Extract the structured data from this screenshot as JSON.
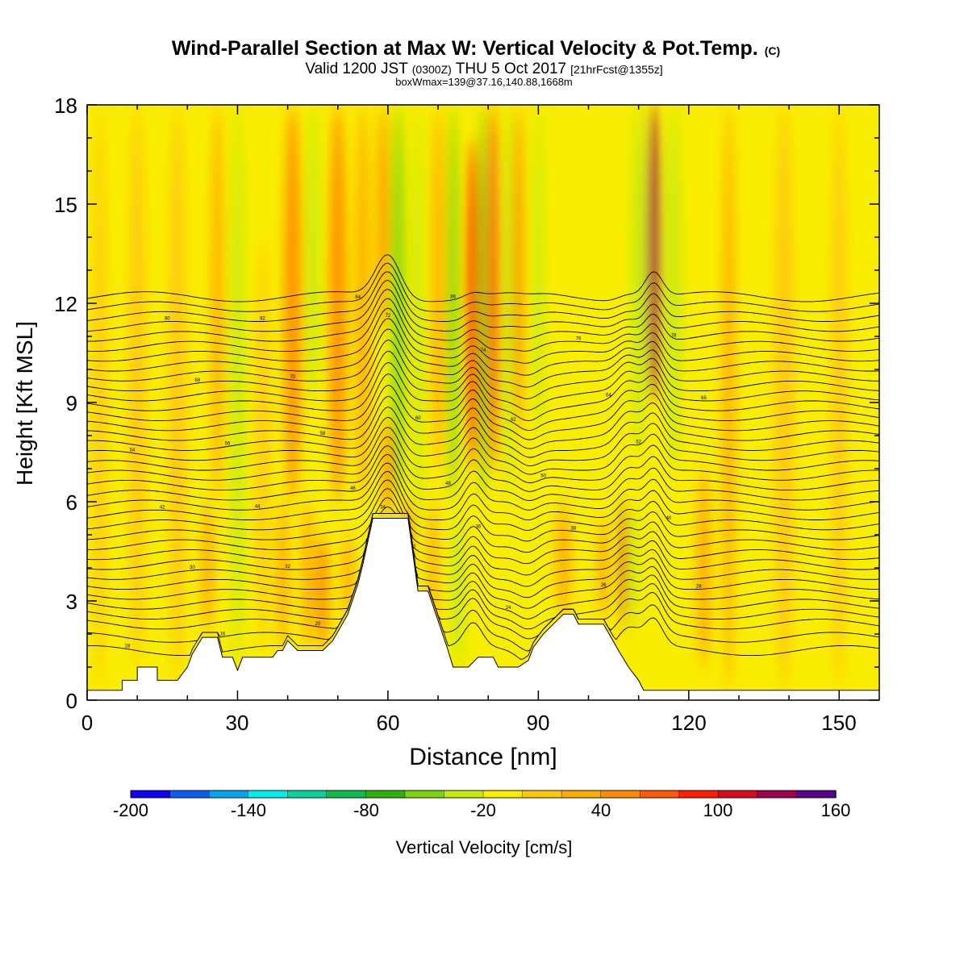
{
  "chart_data": {
    "type": "heatmap",
    "title_main": "Wind-Parallel Section at Max W: Vertical Velocity & Pot.Temp.",
    "title_mark": "(C)",
    "subtitle_a": "Valid 1200 JST",
    "subtitle_b": "(0300Z)",
    "subtitle_c": "THU 5 Oct 2017",
    "subtitle_d": "[21hrFcst@1355z]",
    "subtitle2": "boxWmax=139@37.16,140.88,1668m",
    "xlabel": "Distance [nm]",
    "ylabel": "Height [Kft MSL]",
    "xlim": [
      0,
      158
    ],
    "ylim": [
      0,
      18
    ],
    "x_ticks": [
      "0",
      "30",
      "60",
      "90",
      "120",
      "150"
    ],
    "y_ticks": [
      "0",
      "3",
      "6",
      "9",
      "12",
      "15",
      "18"
    ],
    "colorbar_label": "Vertical Velocity [cm/s]",
    "colorbar_ticks": [
      "-200",
      "-140",
      "-80",
      "-20",
      "40",
      "100",
      "160"
    ],
    "colorbar_colors": [
      "#0f00f4",
      "#0a5cf2",
      "#00a7ef",
      "#04eded",
      "#06d499",
      "#0cbb49",
      "#2fb10c",
      "#7bd40d",
      "#c5ea0d",
      "#f9ed00",
      "#ffc80a",
      "#ffad00",
      "#ff8c00",
      "#ff5a0a",
      "#ff1e00",
      "#d70a1e",
      "#a0004b",
      "#5a0087"
    ],
    "colorbar_range": [
      -200,
      160
    ],
    "colorbar_step": 20,
    "terrain": [
      [
        0,
        0.3
      ],
      [
        7,
        0.3
      ],
      [
        7,
        0.6
      ],
      [
        10,
        0.6
      ],
      [
        10,
        1.0
      ],
      [
        14,
        1.0
      ],
      [
        14,
        0.6
      ],
      [
        18,
        0.6
      ],
      [
        20,
        1.0
      ],
      [
        21,
        1.4
      ],
      [
        23,
        1.9
      ],
      [
        26,
        1.9
      ],
      [
        27,
        1.3
      ],
      [
        29,
        1.3
      ],
      [
        30,
        0.9
      ],
      [
        31,
        1.3
      ],
      [
        37,
        1.3
      ],
      [
        38,
        1.5
      ],
      [
        39,
        1.5
      ],
      [
        40,
        1.8
      ],
      [
        42,
        1.5
      ],
      [
        47,
        1.5
      ],
      [
        49,
        1.8
      ],
      [
        52,
        2.6
      ],
      [
        54,
        3.5
      ],
      [
        55,
        4.1
      ],
      [
        57,
        5.5
      ],
      [
        64,
        5.5
      ],
      [
        66,
        3.3
      ],
      [
        68,
        3.3
      ],
      [
        70,
        2.4
      ],
      [
        72,
        1.5
      ],
      [
        73,
        1.0
      ],
      [
        76,
        1.0
      ],
      [
        78,
        1.3
      ],
      [
        81,
        1.3
      ],
      [
        82,
        1.0
      ],
      [
        86,
        1.0
      ],
      [
        88,
        1.2
      ],
      [
        89,
        1.6
      ],
      [
        91,
        2.0
      ],
      [
        93,
        2.3
      ],
      [
        95,
        2.6
      ],
      [
        97,
        2.6
      ],
      [
        98,
        2.3
      ],
      [
        103,
        2.3
      ],
      [
        106,
        1.5
      ],
      [
        108,
        1.0
      ],
      [
        110,
        0.6
      ],
      [
        111,
        0.3
      ],
      [
        158,
        0.3
      ]
    ],
    "features": [
      {
        "x": 2.5,
        "w": 2.5,
        "y0": 0.3,
        "y1": 18,
        "v": 5
      },
      {
        "x": 10,
        "w": 3.5,
        "y0": 1,
        "y1": 18,
        "v": 10
      },
      {
        "x": 18,
        "w": 3.5,
        "y0": 0.6,
        "y1": 18,
        "v": 10
      },
      {
        "x": 24,
        "w": 2.5,
        "y0": 2,
        "y1": 6,
        "v": 28
      },
      {
        "x": 26,
        "w": 2.5,
        "y0": 6,
        "y1": 18,
        "v": 28
      },
      {
        "x": 30,
        "w": 2.5,
        "y0": 1,
        "y1": 18,
        "v": -25
      },
      {
        "x": 35,
        "w": 2.5,
        "y0": 1.5,
        "y1": 14,
        "v": 18
      },
      {
        "x": 39,
        "w": 2.5,
        "y0": 1.5,
        "y1": 6,
        "v": 35
      },
      {
        "x": 41,
        "w": 3.5,
        "y0": 6,
        "y1": 18,
        "v": 40
      },
      {
        "x": 44,
        "w": 2.5,
        "y0": 1.5,
        "y1": 6,
        "v": 30
      },
      {
        "x": 45,
        "w": 2.5,
        "y0": 9,
        "y1": 18,
        "v": -25
      },
      {
        "x": 47,
        "w": 2.5,
        "y0": 1.5,
        "y1": 5,
        "v": 40
      },
      {
        "x": 50,
        "w": 3.5,
        "y0": 6,
        "y1": 18,
        "v": 45
      },
      {
        "x": 52,
        "w": 2.5,
        "y0": 2.5,
        "y1": 5,
        "v": 25
      },
      {
        "x": 55,
        "w": 3,
        "y0": 6,
        "y1": 18,
        "v": 30
      },
      {
        "x": 60,
        "w": 2,
        "y0": 5.5,
        "y1": 8.5,
        "v": 45
      },
      {
        "x": 59,
        "w": 2,
        "y0": 11,
        "y1": 18,
        "v": 45
      },
      {
        "x": 62,
        "w": 2.5,
        "y0": 6,
        "y1": 18,
        "v": -55
      },
      {
        "x": 64,
        "w": 2,
        "y0": 4,
        "y1": 6,
        "v": 40
      },
      {
        "x": 66,
        "w": 2,
        "y0": 5,
        "y1": 18,
        "v": -35
      },
      {
        "x": 69,
        "w": 2,
        "y0": 2,
        "y1": 6,
        "v": 22
      },
      {
        "x": 70,
        "w": 2.5,
        "y0": 7,
        "y1": 18,
        "v": 30
      },
      {
        "x": 73,
        "w": 2,
        "y0": 6,
        "y1": 18,
        "v": -55
      },
      {
        "x": 74,
        "w": 2.5,
        "y0": 1,
        "y1": 5.5,
        "v": -28
      },
      {
        "x": 77,
        "w": 2.5,
        "y0": 7,
        "y1": 17,
        "v": 80
      },
      {
        "x": 79,
        "w": 2,
        "y0": 6,
        "y1": 18,
        "v": -60
      },
      {
        "x": 81,
        "w": 2.5,
        "y0": 7,
        "y1": 18,
        "v": 70
      },
      {
        "x": 84,
        "w": 2,
        "y0": 6,
        "y1": 18,
        "v": -40
      },
      {
        "x": 86,
        "w": 2,
        "y0": 8,
        "y1": 18,
        "v": 40
      },
      {
        "x": 90,
        "w": 2,
        "y0": 8,
        "y1": 18,
        "v": -25
      },
      {
        "x": 95,
        "w": 3,
        "y0": 2.5,
        "y1": 6,
        "v": 25
      },
      {
        "x": 96,
        "w": 2,
        "y0": 9,
        "y1": 18,
        "v": -20
      },
      {
        "x": 103,
        "w": 2.5,
        "y0": 2.5,
        "y1": 5.5,
        "v": 30
      },
      {
        "x": 107,
        "w": 1.2,
        "y0": 2.2,
        "y1": 6,
        "v": 110
      },
      {
        "x": 109,
        "w": 1.5,
        "y0": 2,
        "y1": 6,
        "v": -30
      },
      {
        "x": 110,
        "w": 3,
        "y0": 7.5,
        "y1": 18,
        "v": -25
      },
      {
        "x": 113,
        "w": 2.5,
        "y0": 9,
        "y1": 18,
        "v": 120
      },
      {
        "x": 117,
        "w": 3,
        "y0": 7,
        "y1": 18,
        "v": -30
      },
      {
        "x": 121,
        "w": 4,
        "y0": 8,
        "y1": 18,
        "v": -20
      },
      {
        "x": 123,
        "w": 3,
        "y0": 1,
        "y1": 7,
        "v": 22
      },
      {
        "x": 128,
        "w": 2.5,
        "y0": 0.3,
        "y1": 18,
        "v": 20
      },
      {
        "x": 139,
        "w": 4,
        "y0": 0.3,
        "y1": 18,
        "v": 8
      },
      {
        "x": 150,
        "w": 3,
        "y0": 0.3,
        "y1": 18,
        "v": 15
      }
    ],
    "contours": [
      {
        "y": 1.5,
        "label": "18"
      },
      {
        "y": 1.9,
        "label": "16"
      },
      {
        "y": 2.3,
        "label": "20"
      },
      {
        "y": 2.6,
        "label": "22"
      },
      {
        "y": 2.9,
        "label": "24"
      },
      {
        "y": 3.2,
        "label": "26"
      },
      {
        "y": 3.5,
        "label": "28"
      },
      {
        "y": 3.8,
        "label": "30"
      },
      {
        "y": 4.1,
        "label": "32"
      },
      {
        "y": 4.4,
        "label": "34"
      },
      {
        "y": 4.7,
        "label": "36"
      },
      {
        "y": 5.0,
        "label": "38"
      },
      {
        "y": 5.3,
        "label": "40"
      },
      {
        "y": 5.6,
        "label": "42"
      },
      {
        "y": 5.9,
        "label": "44"
      },
      {
        "y": 6.2,
        "label": "46"
      },
      {
        "y": 6.5,
        "label": "48"
      },
      {
        "y": 6.8,
        "label": "50"
      },
      {
        "y": 7.1,
        "label": "52"
      },
      {
        "y": 7.4,
        "label": "54"
      },
      {
        "y": 7.7,
        "label": "56"
      },
      {
        "y": 8.0,
        "label": "58"
      },
      {
        "y": 8.3,
        "label": "60"
      },
      {
        "y": 8.6,
        "label": "62"
      },
      {
        "y": 8.9,
        "label": "64"
      },
      {
        "y": 9.2,
        "label": "66"
      },
      {
        "y": 9.5,
        "label": "68"
      },
      {
        "y": 9.8,
        "label": "70"
      },
      {
        "y": 10.1,
        "label": "72"
      },
      {
        "y": 10.4,
        "label": "74"
      },
      {
        "y": 10.7,
        "label": "76"
      },
      {
        "y": 11.0,
        "label": "78"
      },
      {
        "y": 11.3,
        "label": "80"
      },
      {
        "y": 11.6,
        "label": "82"
      },
      {
        "y": 11.9,
        "label": "84"
      },
      {
        "y": 12.2,
        "label": "86"
      }
    ]
  }
}
